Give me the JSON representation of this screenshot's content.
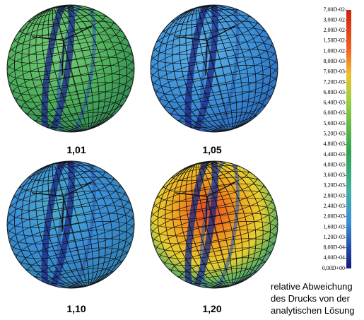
{
  "panels": [
    {
      "label": "1,01"
    },
    {
      "label": "1,05"
    },
    {
      "label": "1,10"
    },
    {
      "label": "1,20"
    }
  ],
  "colorbar": {
    "labels": [
      "7,00D-02",
      "3,00D-02",
      "2,00D-02",
      "1,50D-02",
      "1,00D-02",
      "8,00D-03",
      "7,60D-03",
      "7,20D-03",
      "6,80D-03",
      "6,40D-03",
      "6,00D-03",
      "5,60D-03",
      "5,20D-03",
      "4,80D-03",
      "4,40D-03",
      "4,00D-03",
      "3,60D-03",
      "3,20D-03",
      "2,80D-03",
      "2,40D-03",
      "2,00D-03",
      "1,60D-03",
      "1,20D-03",
      "8,00D-04",
      "4,00D-04",
      "0,00D+00"
    ]
  },
  "caption": {
    "lines": [
      "relative Abweichung",
      "des Drucks von der",
      "analytischen Lösung"
    ]
  }
}
